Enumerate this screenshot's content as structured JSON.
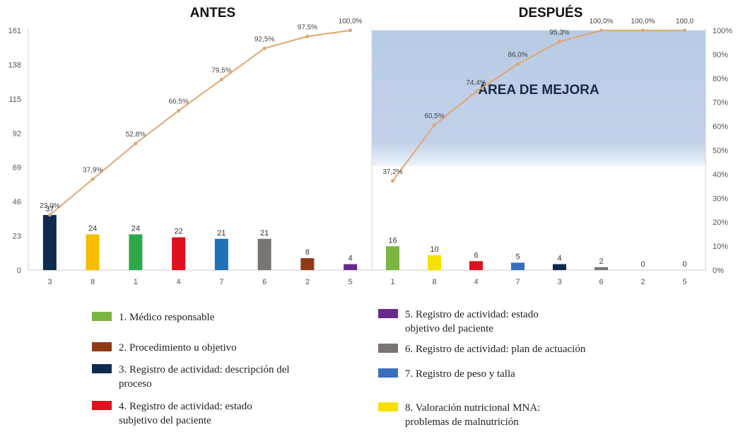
{
  "chart_data": [
    {
      "type": "bar",
      "title": "ANTES",
      "categories": [
        "3",
        "8",
        "1",
        "4",
        "7",
        "6",
        "2",
        "5"
      ],
      "values": [
        37,
        24,
        24,
        22,
        21,
        21,
        8,
        4
      ],
      "bar_colors": [
        "#0d2a4f",
        "#f7bd00",
        "#2ea84a",
        "#e0101e",
        "#1f72b8",
        "#7a7472",
        "#8f3a14",
        "#6a2a8c"
      ],
      "cumulative_pct": [
        23.0,
        37.9,
        52.8,
        66.5,
        79.5,
        92.5,
        97.5,
        100.0
      ],
      "cumulative_pct_labels": [
        "23,0%",
        "37,9%",
        "52,8%",
        "66,5%",
        "79,5%",
        "92,5%",
        "97,5%",
        "100,0%"
      ],
      "ylim": [
        0,
        161
      ],
      "yticks": [
        "0",
        "23",
        "46",
        "69",
        "92",
        "115",
        "138",
        "161"
      ]
    },
    {
      "type": "bar",
      "title": "DESPUÉS",
      "categories": [
        "1",
        "8",
        "4",
        "7",
        "3",
        "6",
        "2",
        "5"
      ],
      "values": [
        16,
        10,
        6,
        5,
        4,
        2,
        0,
        0
      ],
      "bar_colors": [
        "#7ab642",
        "#f7e000",
        "#e0101e",
        "#3a6fbf",
        "#0d2a4f",
        "#7a7472",
        "#8f3a14",
        "#6a2a8c"
      ],
      "cumulative_pct": [
        37.2,
        60.5,
        74.4,
        86.0,
        95.3,
        100.0,
        100.0,
        100.0
      ],
      "cumulative_pct_labels": [
        "37,2%",
        "60,5%",
        "74,4%",
        "86,0%",
        "95,3%",
        "100,0%",
        "100,0%",
        "100,0"
      ],
      "ylim_right": [
        0,
        100
      ],
      "yticks_right": [
        "0%",
        "10%",
        "20%",
        "30%",
        "40%",
        "50%",
        "60%",
        "70%",
        "80%",
        "90%",
        "100%"
      ],
      "annotation": "ÁREA DE MEJORA"
    }
  ],
  "legend": [
    {
      "text": "1. Médico responsable",
      "color": "#7ab642"
    },
    {
      "text": "2. Procedimiento u objetivo",
      "color": "#8f3a14"
    },
    {
      "text": "3. Registro de actividad: descripción del proceso",
      "color": "#0d2a4f"
    },
    {
      "text": "4. Registro de actividad: estado subjetivo del paciente",
      "color": "#e0101e"
    },
    {
      "text": "5. Registro de actividad: estado objetivo del paciente",
      "color": "#6a2a8c"
    },
    {
      "text": "6. Registro de actividad: plan de actuación",
      "color": "#7a7472"
    },
    {
      "text": "7. Registro de peso y talla",
      "color": "#3a6fbf"
    },
    {
      "text": "8. Valoración nutricional MNA: problemas de malnutrición",
      "color": "#f7e000"
    }
  ],
  "colors": {
    "cumulative_line": "#e0a673",
    "area_fill": "#b9cbe4"
  }
}
